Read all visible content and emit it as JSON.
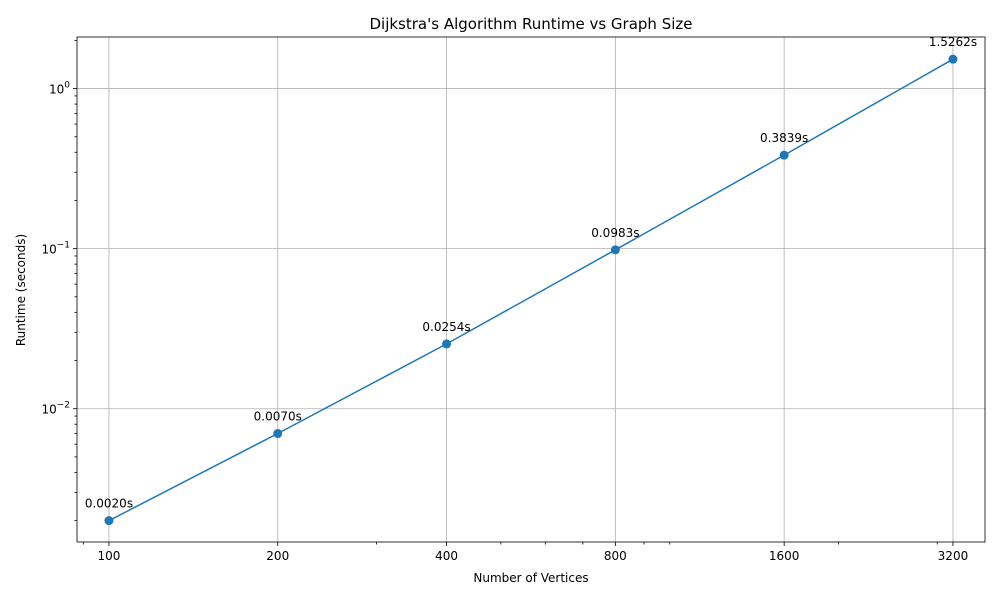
{
  "chart_data": {
    "type": "line",
    "title": "Dijkstra's Algorithm Runtime vs Graph Size",
    "xlabel": "Number of Vertices",
    "ylabel": "Runtime (seconds)",
    "x_scale": "log2",
    "y_scale": "log10",
    "xlim": [
      87.7,
      3650
    ],
    "ylim": [
      0.00147,
      2.1
    ],
    "grid": true,
    "x_ticks": [
      {
        "value": 100,
        "label": "100"
      },
      {
        "value": 200,
        "label": "200"
      },
      {
        "value": 400,
        "label": "400"
      },
      {
        "value": 800,
        "label": "800"
      },
      {
        "value": 1600,
        "label": "1600"
      },
      {
        "value": 3200,
        "label": "3200"
      }
    ],
    "x_minor_ticks": [
      90,
      300,
      500,
      600,
      700,
      900,
      1000,
      2000,
      3000
    ],
    "y_ticks": [
      {
        "value": 0.01,
        "base": "10",
        "exp": "−2"
      },
      {
        "value": 0.1,
        "base": "10",
        "exp": "−1"
      },
      {
        "value": 1,
        "base": "10",
        "exp": "0"
      }
    ],
    "y_minor_ticks": [
      0.002,
      0.003,
      0.004,
      0.005,
      0.006,
      0.007,
      0.008,
      0.009,
      0.02,
      0.03,
      0.04,
      0.05,
      0.06,
      0.07,
      0.08,
      0.09,
      0.2,
      0.3,
      0.4,
      0.5,
      0.6,
      0.7,
      0.8,
      0.9,
      2
    ],
    "series": [
      {
        "color": "#1f77b4",
        "x": [
          100,
          200,
          400,
          800,
          1600,
          3200
        ],
        "y": [
          0.002,
          0.007,
          0.0254,
          0.0983,
          0.3839,
          1.5262
        ],
        "labels": [
          "0.0020s",
          "0.0070s",
          "0.0254s",
          "0.0983s",
          "0.3839s",
          "1.5262s"
        ]
      }
    ]
  }
}
